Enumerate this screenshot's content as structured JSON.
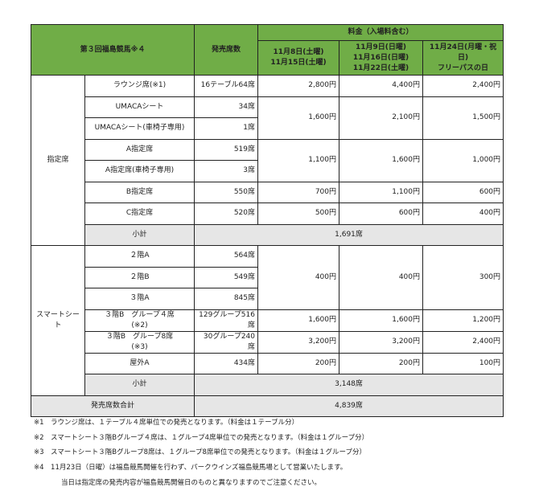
{
  "header": {
    "title": "第３回福島競馬※４",
    "seats": "発売席数",
    "price": "料金（入場料含む）",
    "col1": [
      "11月8日(土曜)",
      "11月15日(土曜)"
    ],
    "col2": [
      "11月9日(日曜)",
      "11月16日(日曜)",
      "11月22日(土曜)"
    ],
    "col3": [
      "11月24日(月曜・祝日)",
      "フリーパスの日"
    ]
  },
  "reserved": {
    "group": "指定席",
    "rows": [
      {
        "name": "ラウンジ席(※1)",
        "seats": "16テーブル64席",
        "p1": "2,800円",
        "p2": "4,400円",
        "p3": "2,400円"
      },
      {
        "name": "UMACAシート",
        "seats": "34席",
        "p1": "1,600円",
        "p2": "2,100円",
        "p3": "1,500円"
      },
      {
        "name": "UMACAシート(車椅子専用)",
        "seats": "1席"
      },
      {
        "name": "A指定席",
        "seats": "519席",
        "p1": "1,100円",
        "p2": "1,600円",
        "p3": "1,000円"
      },
      {
        "name": "A指定席(車椅子専用)",
        "seats": "3席"
      },
      {
        "name": "B指定席",
        "seats": "550席",
        "p1": "700円",
        "p2": "1,100円",
        "p3": "600円"
      },
      {
        "name": "C指定席",
        "seats": "520席",
        "p1": "500円",
        "p2": "600円",
        "p3": "400円"
      }
    ],
    "subtotal_label": "小計",
    "subtotal": "1,691席"
  },
  "smart": {
    "group": "スマートシート",
    "rows": [
      {
        "name": "２階A",
        "seats": "564席",
        "p1": "400円",
        "p2": "400円",
        "p3": "300円"
      },
      {
        "name": "２階B",
        "seats": "549席"
      },
      {
        "name": "３階A",
        "seats": "845席"
      },
      {
        "name": "３階B　グループ４席",
        "note": "(※2)",
        "seats": "129グループ516席",
        "p1": "1,600円",
        "p2": "1,600円",
        "p3": "1,200円"
      },
      {
        "name": "３階B　グループ8席",
        "note": "(※3)",
        "seats": "30グループ240席",
        "p1": "3,200円",
        "p2": "3,200円",
        "p3": "2,400円"
      },
      {
        "name": "屋外A",
        "seats": "434席",
        "p1": "200円",
        "p2": "200円",
        "p3": "100円"
      }
    ],
    "subtotal_label": "小計",
    "subtotal": "3,148席"
  },
  "total": {
    "label": "発売席数合計",
    "value": "4,839席"
  },
  "notes": [
    "※1　ラウンジ席は、１テーブル４席単位での発売となります。（料金は１テーブル分）",
    "※2　スマートシート３階Bグループ４席は、１グループ4席単位での発売となります。（料金は１グループ分）",
    "※3　スマートシート３階Bグループ8席は、１グループ8席単位での発売となります。（料金は１グループ分）",
    "※4　11月23日（日曜）は福島競馬開催を行わず、パークウインズ福島競馬場として営業いたします。",
    "当日は指定席の発売内容が福島競馬開催日のものと異なりますのでご注意ください。"
  ]
}
